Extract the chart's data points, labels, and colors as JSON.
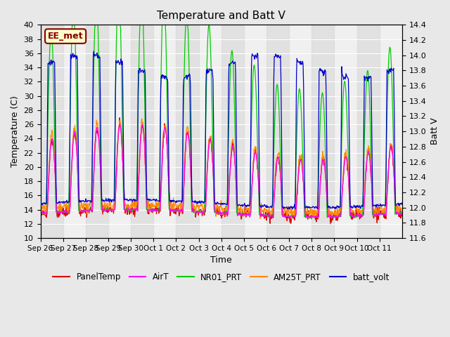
{
  "title": "Temperature and Batt V",
  "xlabel": "Time",
  "ylabel_left": "Temperature (C)",
  "ylabel_right": "Batt V",
  "ylim_left": [
    10,
    40
  ],
  "ylim_right": [
    11.6,
    14.4
  ],
  "yticks_left": [
    10,
    12,
    14,
    16,
    18,
    20,
    22,
    24,
    26,
    28,
    30,
    32,
    34,
    36,
    38,
    40
  ],
  "yticks_right": [
    11.6,
    11.8,
    12.0,
    12.2,
    12.4,
    12.6,
    12.8,
    13.0,
    13.2,
    13.4,
    13.6,
    13.8,
    14.0,
    14.2,
    14.4
  ],
  "xtick_labels": [
    "Sep 26",
    "Sep 27",
    "Sep 28",
    "Sep 29",
    "Sep 30",
    "Oct 1",
    "Oct 2",
    "Oct 3",
    "Oct 4",
    "Oct 5",
    "Oct 6",
    "Oct 7",
    "Oct 8",
    "Oct 9",
    "Oct 10",
    "Oct 11"
  ],
  "xtick_positions": [
    0,
    1,
    2,
    3,
    4,
    5,
    6,
    7,
    8,
    9,
    10,
    11,
    12,
    13,
    14,
    15
  ],
  "colors": {
    "PanelTemp": "#dd0000",
    "AirT": "#ff00ff",
    "NR01_PRT": "#00cc00",
    "AM25T_PRT": "#ff8800",
    "batt_volt": "#0000cc"
  },
  "legend_labels": [
    "PanelTemp",
    "AirT",
    "NR01_PRT",
    "AM25T_PRT",
    "batt_volt"
  ],
  "bg_color": "#e8e8e8",
  "plot_bg": "#f0f0f0",
  "annotation_text": "EE_met",
  "annotation_bg": "#ffffcc",
  "annotation_fg": "#880000"
}
